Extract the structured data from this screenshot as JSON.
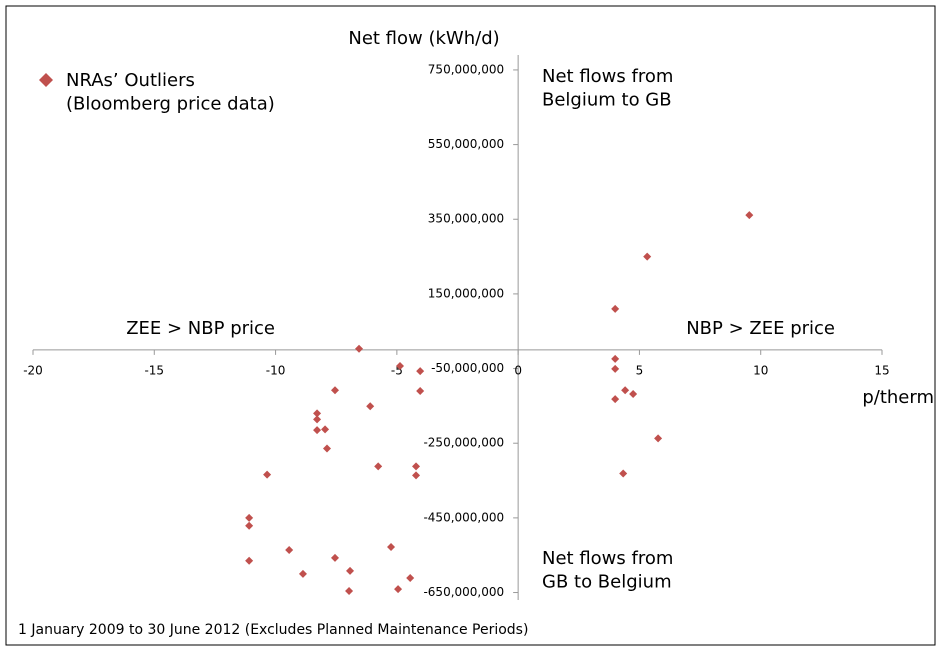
{
  "chart_data": {
    "type": "scatter",
    "x_label": "p/therm",
    "y_label": "Net flow (kWh/d)",
    "footnote": "1 January 2009 to 30 June 2012 (Excludes Planned Maintenance Periods)",
    "annotations": [
      "Net flows from\nBelgium to GB",
      "NBP > ZEE price",
      "ZEE > NBP price",
      "Net flows from\nGB to Belgium"
    ],
    "legend_position": "upper left",
    "series": [
      {
        "name": "NRAs’ Outliers\n(Bloomberg price data)",
        "color": "#c0504d",
        "x": [
          9.53,
          5.32,
          4.0,
          4.0,
          4.0,
          4.41,
          4.74,
          4.0,
          5.77,
          4.33,
          -6.56,
          -4.87,
          -4.04,
          -7.55,
          -4.04,
          -6.1,
          -8.29,
          -8.29,
          -8.29,
          -7.96,
          -7.88,
          -5.77,
          -4.21,
          -4.21,
          -10.35,
          -11.09,
          -11.09,
          -9.44,
          -5.24,
          -7.55,
          -11.09,
          -8.87,
          -6.93,
          -4.45,
          -6.97,
          -4.95
        ],
        "values": [
          361000000,
          250000000,
          110000000,
          -24000000,
          -51000000,
          -108000000,
          -118000000,
          -132000000,
          -237000000,
          -331000000,
          3000000,
          -43000000,
          -57000000,
          -108000000,
          -110000000,
          -151000000,
          -170000000,
          -186000000,
          -215000000,
          -213000000,
          -264000000,
          -312000000,
          -312000000,
          -336000000,
          -334000000,
          -450000000,
          -471000000,
          -536000000,
          -528000000,
          -557000000,
          -565000000,
          -600000000,
          -592000000,
          -611000000,
          -646000000,
          -641000000
        ]
      }
    ],
    "xlim": [
      -20,
      15
    ],
    "xticks": [
      -20,
      -15,
      -10,
      -5,
      0,
      5,
      10,
      15
    ],
    "ylim": [
      -670000000,
      790000000
    ],
    "yticks": [
      {
        "value": 750000000,
        "label": "750,000,000"
      },
      {
        "value": 550000000,
        "label": "550,000,000"
      },
      {
        "value": 350000000,
        "label": "350,000,000"
      },
      {
        "value": 150000000,
        "label": "150,000,000"
      },
      {
        "value": -50000000,
        "label": "-50,000,000"
      },
      {
        "value": -250000000,
        "label": "-250,000,000"
      },
      {
        "value": -450000000,
        "label": "-450,000,000"
      },
      {
        "value": -650000000,
        "label": "-650,000,000"
      }
    ]
  }
}
